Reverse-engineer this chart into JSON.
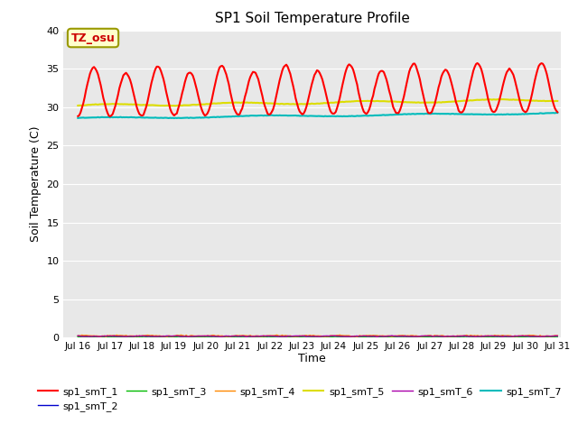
{
  "title": "SP1 Soil Temperature Profile",
  "xlabel": "Time",
  "ylabel": "Soil Temperature (C)",
  "ylim": [
    0,
    40
  ],
  "yticks": [
    0,
    5,
    10,
    15,
    20,
    25,
    30,
    35,
    40
  ],
  "xtick_labels": [
    "Jul 16",
    "Jul 17",
    "Jul 18",
    "Jul 19",
    "Jul 20",
    "Jul 21",
    "Jul 22",
    "Jul 23",
    "Jul 24",
    "Jul 25",
    "Jul 26",
    "Jul 27",
    "Jul 28",
    "Jul 29",
    "Jul 30",
    "Jul 31"
  ],
  "xtick_positions": [
    16,
    17,
    18,
    19,
    20,
    21,
    22,
    23,
    24,
    25,
    26,
    27,
    28,
    29,
    30,
    31
  ],
  "bg_color": "#e8e8e8",
  "fig_bg_color": "#ffffff",
  "annotation_text": "TZ_osu",
  "annotation_color": "#cc0000",
  "annotation_bg": "#ffffcc",
  "annotation_border": "#999900",
  "legend_colors": [
    "#ff0000",
    "#0000cc",
    "#00bb00",
    "#ff8800",
    "#dddd00",
    "#aa00aa",
    "#00bbbb"
  ],
  "legend_names": [
    "sp1_smT_1",
    "sp1_smT_2",
    "sp1_smT_3",
    "sp1_smT_4",
    "sp1_smT_5",
    "sp1_smT_6",
    "sp1_smT_7"
  ]
}
